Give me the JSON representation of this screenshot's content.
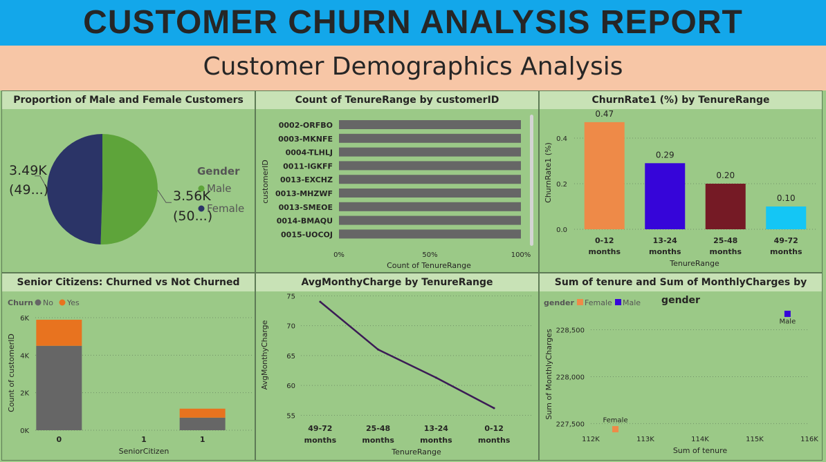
{
  "header": {
    "title": "CUSTOMER CHURN ANALYSIS REPORT",
    "subtitle": "Customer Demographics Analysis"
  },
  "colors": {
    "banner": "#13a7ea",
    "subbanner": "#f7c6a6",
    "background": "#9bc987",
    "panel_title_bg": "#c8e2b6",
    "male": "#5ea43a",
    "female": "#2b3467",
    "no": "#666666",
    "yes": "#e8731f",
    "line": "#3b1b55"
  },
  "chart_data": [
    {
      "type": "pie",
      "title": "Proportion of Male and Female Customers",
      "legend_title": "Gender",
      "legend_position": "right",
      "slices": [
        {
          "name": "Male",
          "value": 3560,
          "label": "3.56K",
          "sublabel": "(50...)",
          "color": "#5ea43a"
        },
        {
          "name": "Female",
          "value": 3490,
          "label": "3.49K",
          "sublabel": "(49...)",
          "color": "#2b3467"
        }
      ]
    },
    {
      "type": "bar",
      "orientation": "horizontal",
      "title": "Count of TenureRange by customerID",
      "xlabel": "Count of TenureRange",
      "ylabel": "customerID",
      "categories": [
        "0002-ORFBO",
        "0003-MKNFE",
        "0004-TLHLJ",
        "0011-IGKFF",
        "0013-EXCHZ",
        "0013-MHZWF",
        "0013-SMEOE",
        "0014-BMAQU",
        "0015-UOCOJ"
      ],
      "values": [
        100,
        100,
        100,
        100,
        100,
        100,
        100,
        100,
        100
      ],
      "xticks": [
        "0%",
        "50%",
        "100%"
      ],
      "xlim": [
        0,
        100
      ],
      "color": "#666666"
    },
    {
      "type": "bar",
      "title": "ChurnRate1 (%) by TenureRange",
      "xlabel": "TenureRange",
      "ylabel": "ChurnRate1 (%)",
      "categories": [
        [
          "0-12",
          "months"
        ],
        [
          "13-24",
          "months"
        ],
        [
          "25-48",
          "months"
        ],
        [
          "49-72",
          "months"
        ]
      ],
      "values": [
        0.47,
        0.29,
        0.2,
        0.1
      ],
      "data_labels": [
        "0.47",
        "0.29",
        "0.20",
        "0.10"
      ],
      "colors": [
        "#ee8a48",
        "#3605d9",
        "#751a25",
        "#14c6f5"
      ],
      "yticks": [
        "0.0",
        "0.2",
        "0.4"
      ],
      "ylim": [
        0,
        0.5
      ]
    },
    {
      "type": "bar",
      "stacked": true,
      "title": "Senior Citizens: Churned vs Not Churned",
      "xlabel": "SeniorCitizen",
      "ylabel": "Count of customerID",
      "legend_title": "Churn",
      "categories": [
        "0",
        "1",
        "1"
      ],
      "series": [
        {
          "name": "No",
          "values": [
            4500,
            0,
            670
          ],
          "color": "#666666"
        },
        {
          "name": "Yes",
          "values": [
            1390,
            0,
            480
          ],
          "color": "#e8731f"
        }
      ],
      "yticks": [
        "0K",
        "2K",
        "4K",
        "6K"
      ],
      "ylim": [
        0,
        6000
      ]
    },
    {
      "type": "line",
      "title": "AvgMonthyCharge by TenureRange",
      "xlabel": "TenureRange",
      "ylabel": "AvgMonthyCharge",
      "categories": [
        [
          "49-72",
          "months"
        ],
        [
          "25-48",
          "months"
        ],
        [
          "13-24",
          "months"
        ],
        [
          "0-12",
          "months"
        ]
      ],
      "values": [
        74.0,
        66.0,
        61.3,
        56.2
      ],
      "yticks": [
        "55",
        "60",
        "65",
        "70",
        "75"
      ],
      "ylim": [
        54,
        75.5
      ],
      "color": "#3b1b55"
    },
    {
      "type": "scatter",
      "title": "Sum of tenure and Sum of MonthlyCharges by gender",
      "xlabel": "Sum of tenure",
      "ylabel": "Sum of MonthlyCharges",
      "legend_title": "gender",
      "points": [
        {
          "name": "Female",
          "x": 112450,
          "y": 227440,
          "color": "#ee8a48"
        },
        {
          "name": "Male",
          "x": 115600,
          "y": 228670,
          "color": "#3605d9"
        }
      ],
      "xticks": [
        "112K",
        "113K",
        "114K",
        "115K",
        "116K"
      ],
      "yticks": [
        "227,500",
        "228,000",
        "228,500"
      ],
      "xlim": [
        112000,
        116000
      ],
      "ylim": [
        227370,
        228850
      ]
    }
  ]
}
